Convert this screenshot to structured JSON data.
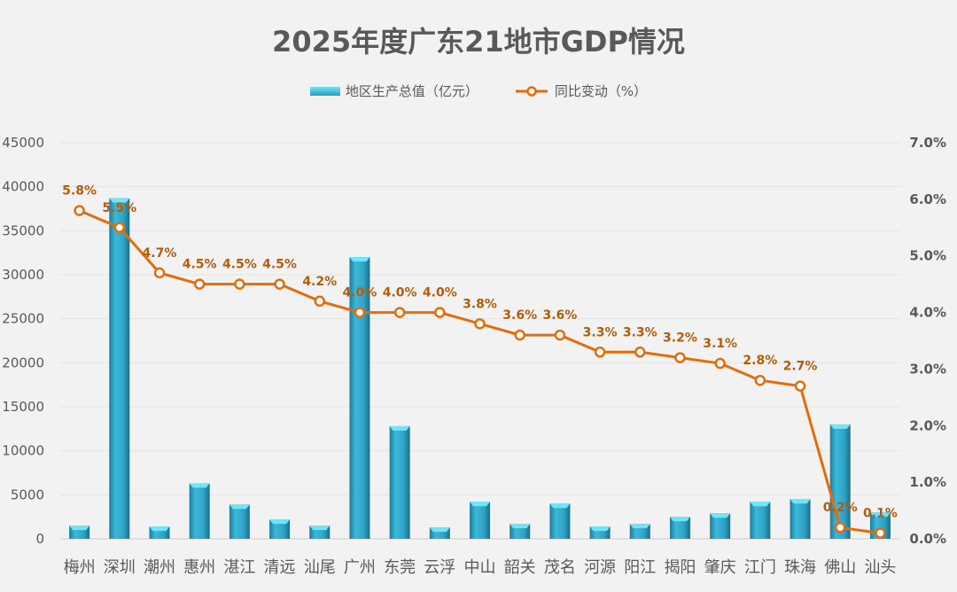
{
  "chart_data": {
    "type": "bar+line",
    "title": "2025年度广东21地市GDP情况",
    "categories": [
      "梅州",
      "深圳",
      "潮州",
      "惠州",
      "湛江",
      "清远",
      "汕尾",
      "广州",
      "东莞",
      "云浮",
      "中山",
      "韶关",
      "茂名",
      "河源",
      "阳江",
      "揭阳",
      "肇庆",
      "江门",
      "珠海",
      "佛山",
      "汕头"
    ],
    "series": [
      {
        "name": "地区生产总值（亿元）",
        "type": "bar",
        "axis": "left",
        "color": "#2fa8cc",
        "values": [
          1500,
          38700,
          1400,
          6300,
          3900,
          2200,
          1500,
          32000,
          12800,
          1300,
          4200,
          1700,
          4000,
          1400,
          1700,
          2500,
          2900,
          4200,
          4500,
          13000,
          3000
        ]
      },
      {
        "name": "同比变动（%）",
        "type": "line",
        "axis": "right",
        "color": "#e46c0a",
        "values": [
          5.8,
          5.5,
          4.7,
          4.5,
          4.5,
          4.5,
          4.2,
          4.0,
          4.0,
          4.0,
          3.8,
          3.6,
          3.6,
          3.3,
          3.3,
          3.2,
          3.1,
          2.8,
          2.7,
          0.2,
          0.1
        ],
        "labels": [
          "5.8%",
          "5.5%",
          "4.7%",
          "4.5%",
          "4.5%",
          "4.5%",
          "4.2%",
          "4.0%",
          "4.0%",
          "4.0%",
          "3.8%",
          "3.6%",
          "3.6%",
          "3.3%",
          "3.3%",
          "3.2%",
          "3.1%",
          "2.8%",
          "2.7%",
          "0.2%",
          "0.1%"
        ]
      }
    ],
    "y_left": {
      "range": [
        0,
        45000
      ],
      "ticks": [
        "0",
        "5000",
        "10000",
        "15000",
        "20000",
        "25000",
        "30000",
        "35000",
        "40000",
        "45000"
      ]
    },
    "y_right": {
      "range": [
        0,
        7
      ],
      "ticks": [
        "0.0%",
        "1.0%",
        "2.0%",
        "3.0%",
        "4.0%",
        "5.0%",
        "6.0%",
        "7.0%"
      ]
    },
    "grid": true,
    "legend": "top"
  }
}
